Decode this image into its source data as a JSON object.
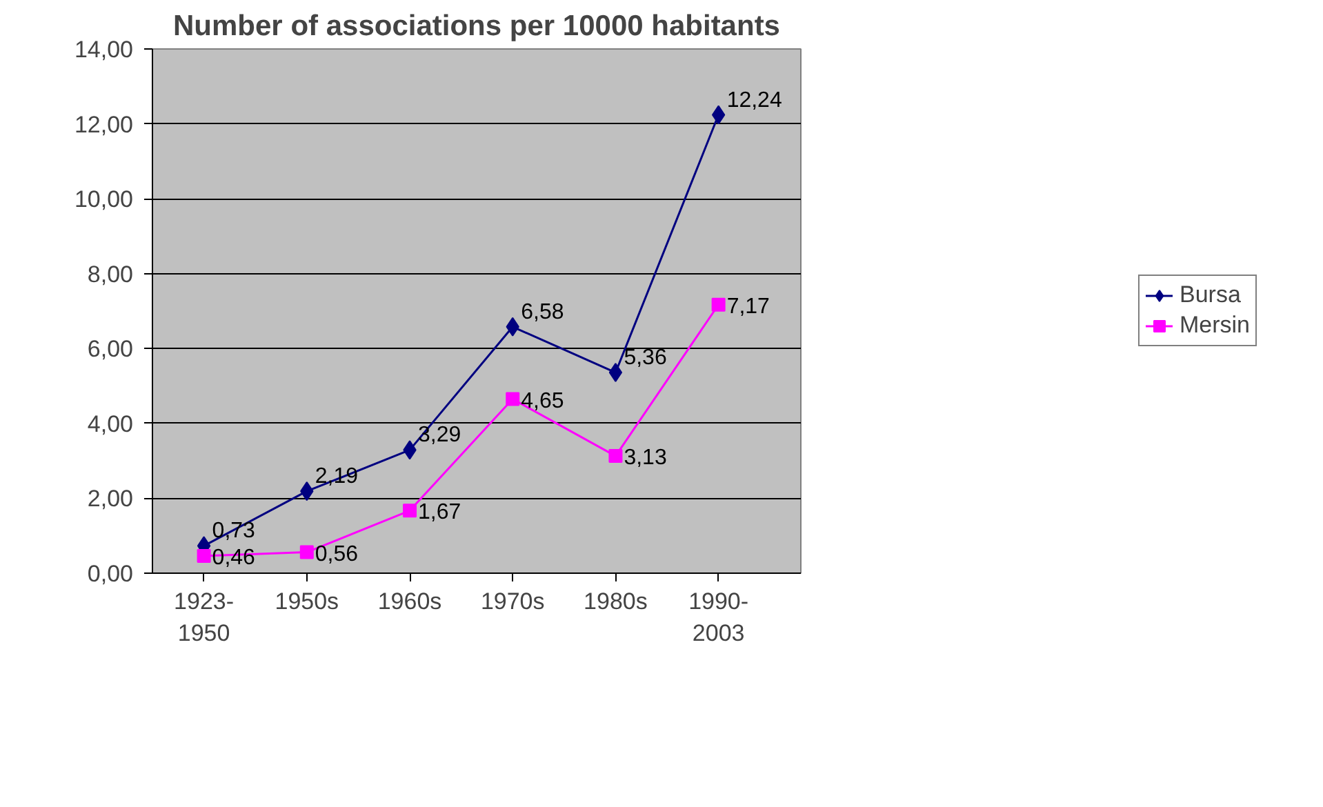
{
  "chart_data": {
    "type": "line",
    "title": "Number of associations per 10000 habitants",
    "categories": [
      "1923-\n1950",
      "1950s",
      "1960s",
      "1970s",
      "1980s",
      "1990-\n2003"
    ],
    "series": [
      {
        "name": "Bursa",
        "color": "#000080",
        "marker": "diamond",
        "values": [
          0.73,
          2.19,
          3.29,
          6.58,
          5.36,
          12.24
        ],
        "value_labels": [
          "0,73",
          "2,19",
          "3,29",
          "6,58",
          "5,36",
          "12,24"
        ]
      },
      {
        "name": "Mersin",
        "color": "#ff00ff",
        "marker": "square",
        "values": [
          0.46,
          0.56,
          1.67,
          4.65,
          3.13,
          7.17
        ],
        "value_labels": [
          "0,46",
          "0,56",
          "1,67",
          "4,65",
          "3,13",
          "7,17"
        ]
      }
    ],
    "ylim": [
      0,
      14
    ],
    "yticks": [
      {
        "value": 0,
        "label": "0,00"
      },
      {
        "value": 2,
        "label": "2,00"
      },
      {
        "value": 4,
        "label": "4,00"
      },
      {
        "value": 6,
        "label": "6,00"
      },
      {
        "value": 8,
        "label": "8,00"
      },
      {
        "value": 10,
        "label": "10,00"
      },
      {
        "value": 12,
        "label": "12,00"
      },
      {
        "value": 14,
        "label": "14,00"
      }
    ],
    "grid": "y",
    "legend": "right",
    "line_style": "solid"
  }
}
